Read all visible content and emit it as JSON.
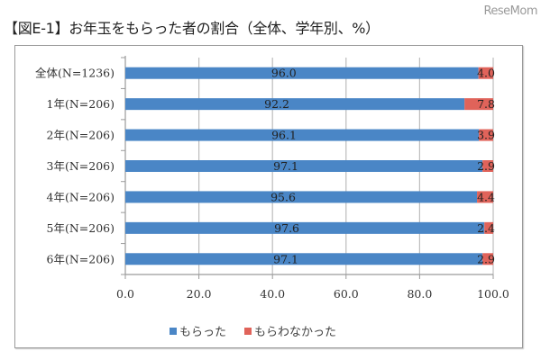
{
  "watermark": "ReseMom",
  "title": "【図E-1】お年玉をもらった者の割合（全体、学年別、%）",
  "colors": {
    "received": "#4a86c6",
    "not_received": "#e0635a",
    "grid": "#bdbdbd",
    "axis": "#9a9a9a"
  },
  "chart_data": {
    "type": "bar",
    "orientation": "horizontal",
    "stacked": true,
    "title": "【図E-1】お年玉をもらった者の割合（全体、学年別、%）",
    "categories": [
      "全体(N=1236)",
      "1年(N=206)",
      "2年(N=206)",
      "3年(N=206)",
      "4年(N=206)",
      "5年(N=206)",
      "6年(N=206)"
    ],
    "series": [
      {
        "name": "もらった",
        "values": [
          96.0,
          92.2,
          96.1,
          97.1,
          95.6,
          97.6,
          97.1
        ],
        "labels": [
          "96.0",
          "92.2",
          "96.1",
          "97.1",
          "95.6",
          "97.6",
          "97.1"
        ]
      },
      {
        "name": "もらわなかった",
        "values": [
          4.0,
          7.8,
          3.9,
          2.9,
          4.4,
          2.4,
          2.9
        ],
        "labels": [
          "4.0",
          "7.8",
          "3.9",
          "2.9",
          "4.4",
          "2.4",
          "2.9"
        ]
      }
    ],
    "xlim": [
      0,
      100
    ],
    "xticks": [
      "0.0",
      "20.0",
      "40.0",
      "60.0",
      "80.0",
      "100.0"
    ],
    "xtick_values": [
      0,
      20,
      40,
      60,
      80,
      100
    ],
    "grid": true,
    "legend": "bottom"
  }
}
